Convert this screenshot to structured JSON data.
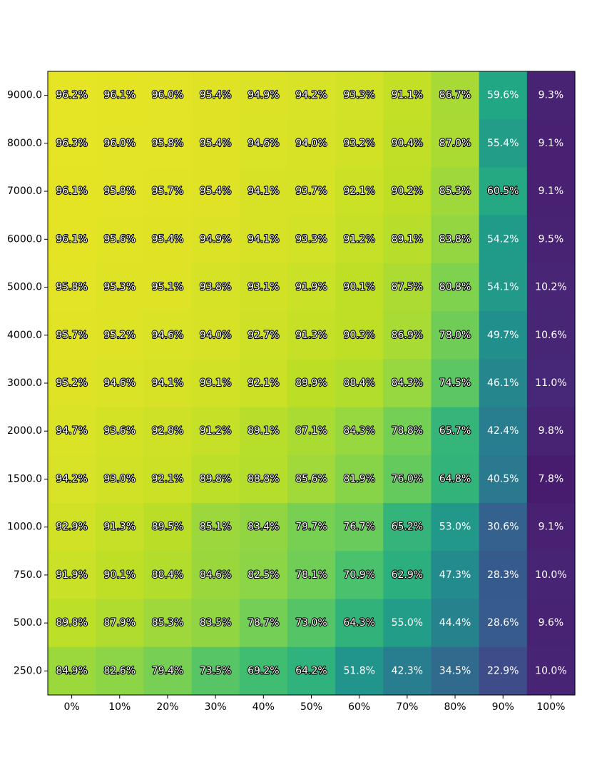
{
  "chart_data": {
    "type": "heatmap",
    "title": "",
    "xlabel": "",
    "ylabel": "",
    "colormap": "viridis",
    "value_range": [
      0,
      100
    ],
    "x_categories": [
      "0%",
      "10%",
      "20%",
      "30%",
      "40%",
      "50%",
      "60%",
      "70%",
      "80%",
      "90%",
      "100%"
    ],
    "y_categories": [
      "9000.0",
      "8000.0",
      "7000.0",
      "6000.0",
      "5000.0",
      "4000.0",
      "3000.0",
      "2000.0",
      "1500.0",
      "1000.0",
      "750.0",
      "500.0",
      "250.0"
    ],
    "values": [
      [
        96.2,
        96.1,
        96.0,
        95.4,
        94.9,
        94.2,
        93.3,
        91.1,
        86.7,
        59.6,
        9.3
      ],
      [
        96.3,
        96.0,
        95.8,
        95.4,
        94.6,
        94.0,
        93.2,
        90.4,
        87.0,
        55.4,
        9.1
      ],
      [
        96.1,
        95.8,
        95.7,
        95.4,
        94.1,
        93.7,
        92.1,
        90.2,
        85.3,
        60.5,
        9.1
      ],
      [
        96.1,
        95.6,
        95.4,
        94.9,
        94.1,
        93.3,
        91.2,
        89.1,
        83.8,
        54.2,
        9.5
      ],
      [
        95.8,
        95.3,
        95.1,
        93.8,
        93.1,
        91.9,
        90.1,
        87.5,
        80.8,
        54.1,
        10.2
      ],
      [
        95.7,
        95.2,
        94.6,
        94.0,
        92.7,
        91.3,
        90.3,
        86.9,
        78.0,
        49.7,
        10.6
      ],
      [
        95.2,
        94.6,
        94.1,
        93.1,
        92.1,
        89.9,
        88.4,
        84.3,
        74.5,
        46.1,
        11.0
      ],
      [
        94.7,
        93.6,
        92.8,
        91.2,
        89.1,
        87.1,
        84.3,
        78.8,
        65.7,
        42.4,
        9.8
      ],
      [
        94.2,
        93.0,
        92.1,
        89.8,
        88.8,
        85.6,
        81.9,
        76.0,
        64.8,
        40.5,
        7.8
      ],
      [
        92.9,
        91.3,
        89.5,
        85.1,
        83.4,
        79.7,
        76.7,
        65.2,
        53.0,
        30.6,
        9.1
      ],
      [
        91.9,
        90.1,
        88.4,
        84.6,
        82.5,
        78.1,
        70.9,
        62.9,
        47.3,
        28.3,
        10.0
      ],
      [
        89.8,
        87.9,
        85.3,
        83.5,
        78.7,
        73.0,
        64.3,
        55.0,
        44.4,
        28.6,
        9.6
      ],
      [
        84.9,
        82.6,
        79.4,
        73.5,
        69.2,
        64.2,
        51.8,
        42.3,
        34.5,
        22.9,
        10.0
      ]
    ],
    "value_suffix": "%",
    "grid": false,
    "legend": "none"
  }
}
